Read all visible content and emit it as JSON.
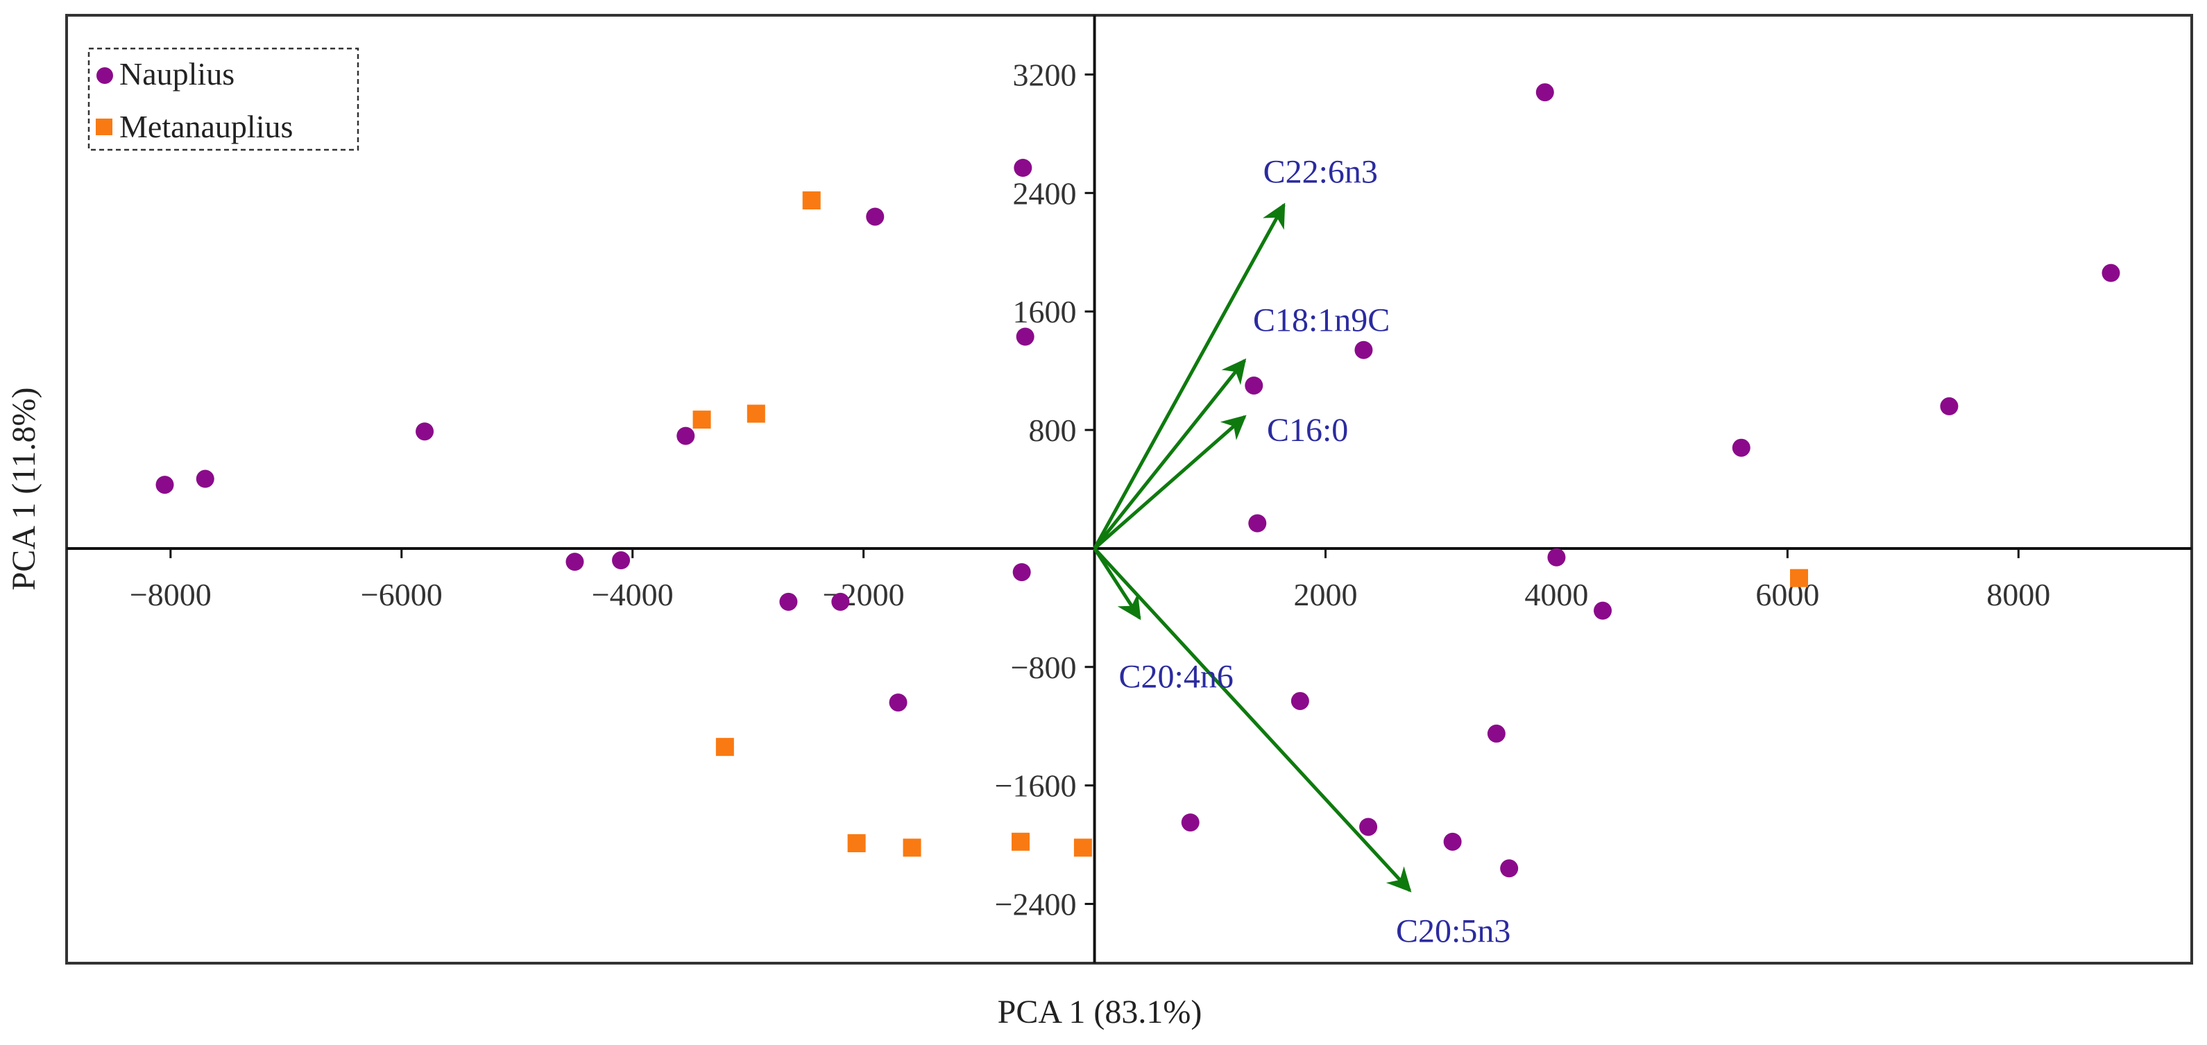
{
  "chart_data": {
    "type": "scatter",
    "title": "",
    "xlabel": "PCA 1 (83.1%)",
    "ylabel": "PCA 1 (11.8%)",
    "xlim": [
      -8900,
      9500
    ],
    "ylim": [
      -2800,
      3600
    ],
    "xticks": [
      {
        "value": -8000,
        "label": "−8000"
      },
      {
        "value": -6000,
        "label": "−6000"
      },
      {
        "value": -4000,
        "label": "−4000"
      },
      {
        "value": -2000,
        "label": "−2000"
      },
      {
        "value": 2000,
        "label": "2000"
      },
      {
        "value": 4000,
        "label": "4000"
      },
      {
        "value": 6000,
        "label": "6000"
      },
      {
        "value": 8000,
        "label": "8000"
      }
    ],
    "yticks": [
      {
        "value": 3200,
        "label": "3200"
      },
      {
        "value": 2400,
        "label": "2400"
      },
      {
        "value": 1600,
        "label": "1600"
      },
      {
        "value": 800,
        "label": "800"
      },
      {
        "value": -800,
        "label": "−800"
      },
      {
        "value": -1600,
        "label": "−1600"
      },
      {
        "value": -2400,
        "label": "−2400"
      }
    ],
    "grid": false,
    "legend_position": "top-left",
    "series": [
      {
        "name": "Nauplius",
        "marker": "circle",
        "color": "#8B0A8B",
        "points": [
          [
            -8050,
            430
          ],
          [
            -7700,
            470
          ],
          [
            -5800,
            790
          ],
          [
            -4500,
            -90
          ],
          [
            -4100,
            -80
          ],
          [
            -3540,
            760
          ],
          [
            -2650,
            -360
          ],
          [
            -2200,
            -360
          ],
          [
            -1900,
            2240
          ],
          [
            -1700,
            -1040
          ],
          [
            -620,
            2570
          ],
          [
            -600,
            1430
          ],
          [
            -630,
            -160
          ],
          [
            830,
            -1850
          ],
          [
            1380,
            1100
          ],
          [
            1410,
            170
          ],
          [
            1780,
            -1030
          ],
          [
            2330,
            1340
          ],
          [
            2370,
            -1880
          ],
          [
            3100,
            -1980
          ],
          [
            3480,
            -1250
          ],
          [
            3590,
            -2160
          ],
          [
            3900,
            3080
          ],
          [
            4000,
            -60
          ],
          [
            4400,
            -420
          ],
          [
            5600,
            680
          ],
          [
            7400,
            960
          ],
          [
            8800,
            1860
          ]
        ]
      },
      {
        "name": "Metanauplius",
        "marker": "square",
        "color": "#F97A12",
        "points": [
          [
            -3400,
            870
          ],
          [
            -2930,
            910
          ],
          [
            -3200,
            -1340
          ],
          [
            -2450,
            2350
          ],
          [
            -2060,
            -1990
          ],
          [
            -1580,
            -2020
          ],
          [
            -640,
            -1980
          ],
          [
            -100,
            -2020
          ],
          [
            6100,
            -200
          ]
        ]
      }
    ],
    "vectors": {
      "color": "#0E7A0E",
      "label_color": "#2B2BA0",
      "items": [
        {
          "label": "C22:6n3",
          "x": 1640,
          "y": 2320
        },
        {
          "label": "C18:1n9C",
          "x": 1300,
          "y": 1270
        },
        {
          "label": "C16:0",
          "x": 1300,
          "y": 890
        },
        {
          "label": "C20:4n6",
          "x": 390,
          "y": -470
        },
        {
          "label": "C20:5n3",
          "x": 2730,
          "y": -2310
        }
      ]
    }
  }
}
